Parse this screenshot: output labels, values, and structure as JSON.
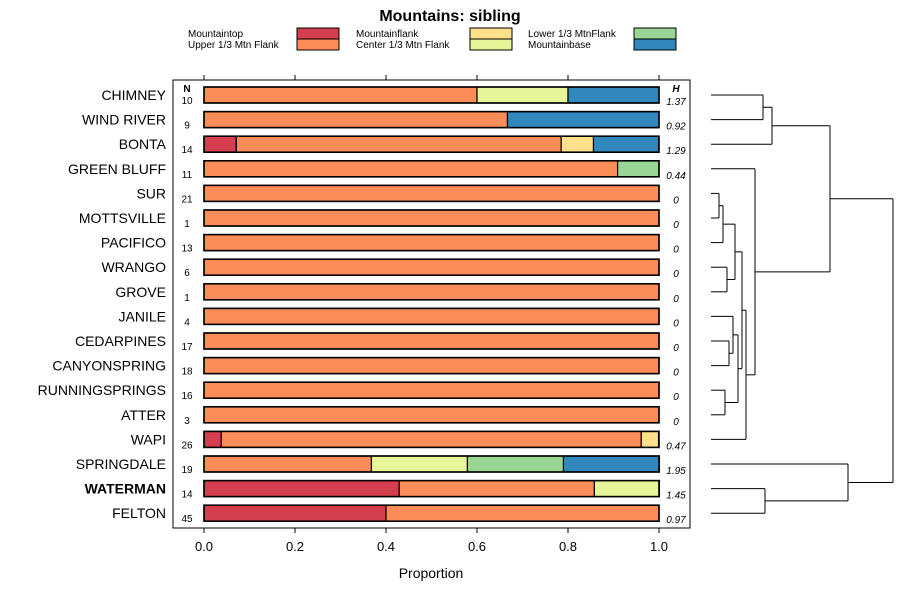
{
  "chart_data": {
    "type": "bar",
    "stacked": true,
    "orientation": "horizontal",
    "title": "Mountains: sibling",
    "xlabel": "Proportion",
    "xlim": [
      0,
      1
    ],
    "xticks": [
      "0.0",
      "0.2",
      "0.4",
      "0.6",
      "0.8",
      "1.0"
    ],
    "n_header": "N",
    "h_header": "H",
    "legend": [
      {
        "label": "Mountaintop",
        "color": "#d53e4f"
      },
      {
        "label": "Upper 1/3 Mtn Flank",
        "color": "#fc8d59"
      },
      {
        "label": "Mountainflank",
        "color": "#fee08b"
      },
      {
        "label": "Center 1/3 Mtn Flank",
        "color": "#e6f598"
      },
      {
        "label": "Lower 1/3 MtnFlank",
        "color": "#99d594"
      },
      {
        "label": "Mountainbase",
        "color": "#3288bd"
      }
    ],
    "rows": [
      {
        "label": "CHIMNEY",
        "n": "10",
        "h": "1.37",
        "bold": false,
        "values": [
          0,
          0.6,
          0,
          0.2,
          0,
          0.2
        ]
      },
      {
        "label": "WIND RIVER",
        "n": "9",
        "h": "0.92",
        "bold": false,
        "values": [
          0,
          0.667,
          0,
          0,
          0,
          0.333
        ]
      },
      {
        "label": "BONTA",
        "n": "14",
        "h": "1.29",
        "bold": false,
        "values": [
          0.071,
          0.714,
          0.071,
          0,
          0,
          0.143
        ]
      },
      {
        "label": "GREEN BLUFF",
        "n": "11",
        "h": "0.44",
        "bold": false,
        "values": [
          0,
          0.909,
          0,
          0,
          0.091,
          0
        ]
      },
      {
        "label": "SUR",
        "n": "21",
        "h": "0",
        "bold": false,
        "values": [
          0,
          1,
          0,
          0,
          0,
          0
        ]
      },
      {
        "label": "MOTTSVILLE",
        "n": "1",
        "h": "0",
        "bold": false,
        "values": [
          0,
          1,
          0,
          0,
          0,
          0
        ]
      },
      {
        "label": "PACIFICO",
        "n": "13",
        "h": "0",
        "bold": false,
        "values": [
          0,
          1,
          0,
          0,
          0,
          0
        ]
      },
      {
        "label": "WRANGO",
        "n": "6",
        "h": "0",
        "bold": false,
        "values": [
          0,
          1,
          0,
          0,
          0,
          0
        ]
      },
      {
        "label": "GROVE",
        "n": "1",
        "h": "0",
        "bold": false,
        "values": [
          0,
          1,
          0,
          0,
          0,
          0
        ]
      },
      {
        "label": "JANILE",
        "n": "4",
        "h": "0",
        "bold": false,
        "values": [
          0,
          1,
          0,
          0,
          0,
          0
        ]
      },
      {
        "label": "CEDARPINES",
        "n": "17",
        "h": "0",
        "bold": false,
        "values": [
          0,
          1,
          0,
          0,
          0,
          0
        ]
      },
      {
        "label": "CANYONSPRING",
        "n": "18",
        "h": "0",
        "bold": false,
        "values": [
          0,
          1,
          0,
          0,
          0,
          0
        ]
      },
      {
        "label": "RUNNINGSPRINGS",
        "n": "16",
        "h": "0",
        "bold": false,
        "values": [
          0,
          1,
          0,
          0,
          0,
          0
        ]
      },
      {
        "label": "ATTER",
        "n": "3",
        "h": "0",
        "bold": false,
        "values": [
          0,
          1,
          0,
          0,
          0,
          0
        ]
      },
      {
        "label": "WAPI",
        "n": "26",
        "h": "0.47",
        "bold": false,
        "values": [
          0.038,
          0.923,
          0.038,
          0,
          0,
          0
        ]
      },
      {
        "label": "SPRINGDALE",
        "n": "19",
        "h": "1.95",
        "bold": false,
        "values": [
          0,
          0.368,
          0,
          0.211,
          0.211,
          0.211
        ]
      },
      {
        "label": "WATERMAN",
        "n": "14",
        "h": "1.45",
        "bold": true,
        "values": [
          0.429,
          0.429,
          0,
          0.143,
          0,
          0
        ]
      },
      {
        "label": "FELTON",
        "n": "45",
        "h": "0.97",
        "bold": false,
        "values": [
          0.4,
          0.6,
          0,
          0,
          0,
          0
        ]
      }
    ],
    "dendrogram_order": [
      "CHIMNEY",
      "WIND RIVER",
      "BONTA",
      "GREEN BLUFF",
      "SUR",
      "MOTTSVILLE",
      "PACIFICO",
      "WRANGO",
      "GROVE",
      "JANILE",
      "CEDARPINES",
      "CANYONSPRING",
      "RUNNINGSPRINGS",
      "ATTER",
      "WAPI",
      "SPRINGDALE",
      "WATERMAN",
      "FELTON"
    ]
  }
}
